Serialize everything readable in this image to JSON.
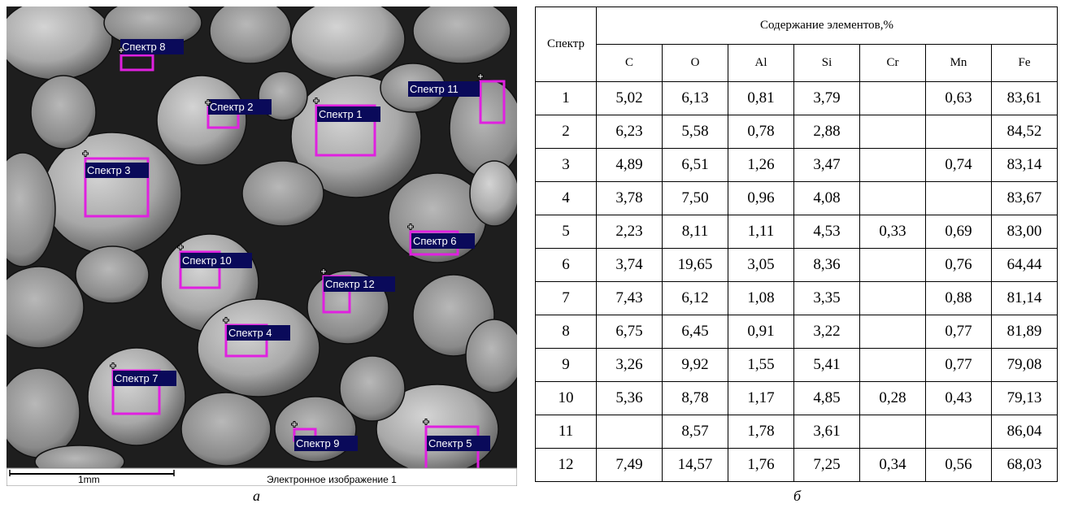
{
  "figure": {
    "image": {
      "spectra": [
        "Спектр 8",
        "Спектр 2",
        "Спектр 1",
        "Спектр 11",
        "Спектр 3",
        "Спектр 6",
        "Спектр 10",
        "Спектр 12",
        "Спектр 4",
        "Спектр 7",
        "Спектр 9",
        "Спектр 5"
      ],
      "scale_bar": "1mm",
      "caption": "Электронное изображение 1",
      "panel_label": "а"
    },
    "table": {
      "header": {
        "spectrum": "Спектр",
        "content": "Содержание элементов,%",
        "elements": [
          "C",
          "O",
          "Al",
          "Si",
          "Cr",
          "Mn",
          "Fe"
        ]
      },
      "rows": [
        [
          "1",
          "5,02",
          "6,13",
          "0,81",
          "3,79",
          null,
          "0,63",
          "83,61"
        ],
        [
          "2",
          "6,23",
          "5,58",
          "0,78",
          "2,88",
          null,
          null,
          "84,52"
        ],
        [
          "3",
          "4,89",
          "6,51",
          "1,26",
          "3,47",
          null,
          "0,74",
          "83,14"
        ],
        [
          "4",
          "3,78",
          "7,50",
          "0,96",
          "4,08",
          null,
          null,
          "83,67"
        ],
        [
          "5",
          "2,23",
          "8,11",
          "1,11",
          "4,53",
          "0,33",
          "0,69",
          "83,00"
        ],
        [
          "6",
          "3,74",
          "19,65",
          "3,05",
          "8,36",
          null,
          "0,76",
          "64,44"
        ],
        [
          "7",
          "7,43",
          "6,12",
          "1,08",
          "3,35",
          null,
          "0,88",
          "81,14"
        ],
        [
          "8",
          "6,75",
          "6,45",
          "0,91",
          "3,22",
          null,
          "0,77",
          "81,89"
        ],
        [
          "9",
          "3,26",
          "9,92",
          "1,55",
          "5,41",
          null,
          "0,77",
          "79,08"
        ],
        [
          "10",
          "5,36",
          "8,78",
          "1,17",
          "4,85",
          "0,28",
          "0,43",
          "79,13"
        ],
        [
          "11",
          null,
          "8,57",
          "1,78",
          "3,61",
          null,
          null,
          "86,04"
        ],
        [
          "12",
          "7,49",
          "14,57",
          "1,76",
          "7,25",
          "0,34",
          "0,56",
          "68,03"
        ]
      ],
      "panel_label": "б"
    }
  }
}
